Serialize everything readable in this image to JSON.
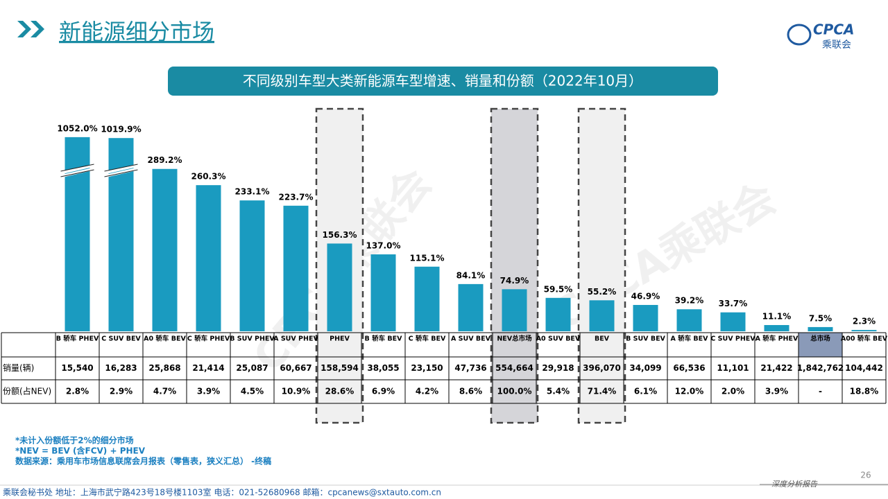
{
  "header": {
    "title": "新能源细分市场",
    "logo": "CPCA",
    "logo_sub": "乘联会"
  },
  "watermark": "CPCA乘联会",
  "chart_data": {
    "type": "bar",
    "title": "不同级别车型大类新能源车型增速、销量和份额（2022年10月）",
    "categories": [
      "B 轿车 PHEV",
      "C SUV BEV",
      "A0 轿车 BEV",
      "C 轿车 PHEV",
      "B SUV PHEV",
      "A SUV PHEV",
      "PHEV",
      "B 轿车 BEV",
      "C 轿车 BEV",
      "A SUV BEV",
      "NEV总市场",
      "A0 SUV BEV",
      "BEV",
      "B SUV BEV",
      "A 轿车 BEV",
      "C SUV PHEV",
      "A 轿车 PHEV",
      "总市场",
      "A00 轿车 BEV"
    ],
    "values": [
      1052.0,
      1019.9,
      289.2,
      260.3,
      233.1,
      223.7,
      156.3,
      137.0,
      115.1,
      84.1,
      74.9,
      59.5,
      55.2,
      46.9,
      39.2,
      33.7,
      11.1,
      7.5,
      2.3
    ],
    "value_labels": [
      "1052.0%",
      "1019.9%",
      "289.2%",
      "260.3%",
      "233.1%",
      "223.7%",
      "156.3%",
      "137.0%",
      "115.1%",
      "84.1%",
      "74.9%",
      "59.5%",
      "55.2%",
      "46.9%",
      "39.2%",
      "33.7%",
      "11.1%",
      "7.5%",
      "2.3%"
    ],
    "color": "#1a9bc0",
    "table": {
      "rows": [
        {
          "label": "销量(辆)",
          "cells": [
            "15,540",
            "16,283",
            "25,868",
            "21,414",
            "25,087",
            "60,667",
            "158,594",
            "38,055",
            "23,150",
            "47,736",
            "554,664",
            "29,918",
            "396,070",
            "34,099",
            "66,536",
            "11,101",
            "21,422",
            "1,842,762",
            "104,442"
          ]
        },
        {
          "label": "份额(占NEV)",
          "cells": [
            "2.8%",
            "2.9%",
            "4.7%",
            "3.9%",
            "4.5%",
            "10.9%",
            "28.6%",
            "6.9%",
            "4.2%",
            "8.6%",
            "100.0%",
            "5.4%",
            "71.4%",
            "6.1%",
            "12.0%",
            "2.0%",
            "3.9%",
            "-",
            "18.8%"
          ]
        }
      ]
    }
  },
  "notes": [
    "*未计入份额低于2%的细分市场",
    "*NEV = BEV (含FCV) + PHEV",
    "数据来源：乘用车市场信息联席会月报表（零售表，狭义汇总） -终稿"
  ],
  "footer": {
    "text": "乘联会秘书处  地址：上海市武宁路423号18号楼1103室  电话：021-52680968  邮箱：cpcanews@sxtauto.com.cn",
    "page": "26",
    "tag": "深度分析报告"
  }
}
